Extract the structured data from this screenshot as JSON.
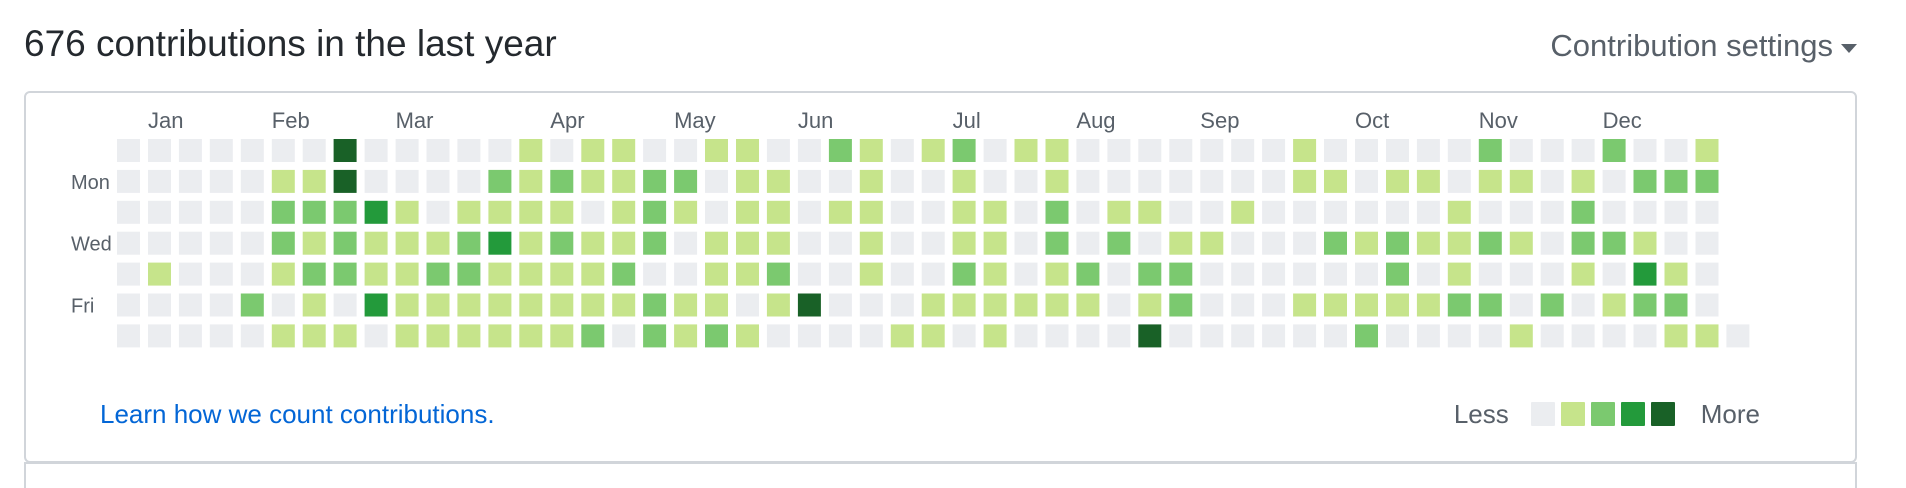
{
  "header": {
    "title": "676 contributions in the last year",
    "settings_label": "Contribution settings",
    "settings_icon": "caret-down-icon"
  },
  "calendar": {
    "months": [
      "Jan",
      "Feb",
      "Mar",
      "Apr",
      "May",
      "Jun",
      "Jul",
      "Aug",
      "Sep",
      "Oct",
      "Nov",
      "Dec"
    ],
    "month_start_weeks": [
      1,
      5,
      9,
      14,
      18,
      22,
      27,
      31,
      35,
      40,
      44,
      48
    ],
    "day_labels": [
      "",
      "Mon",
      "",
      "Wed",
      "",
      "Fri",
      ""
    ],
    "colors": [
      "#ebedf0",
      "#c6e48b",
      "#7bc96f",
      "#239a3b",
      "#196127"
    ],
    "grid_levels": [
      "0000000400000101100110021012011000000010000020002001",
      "0000011400002121122011001001001000000011011011010222",
      "0000022231011110121011011001102011001000000100020000",
      "0000021211123121120111001001102020110002121121022100",
      "0100012211221111200112001002101202200000020100010310",
      "0000201031111111121101400011111101200011111220201220",
      "00000111011111120212100001101000040000002000010000110"
    ],
    "learn_link": "Learn how we count contributions.",
    "legend_less": "Less",
    "legend_more": "More"
  }
}
